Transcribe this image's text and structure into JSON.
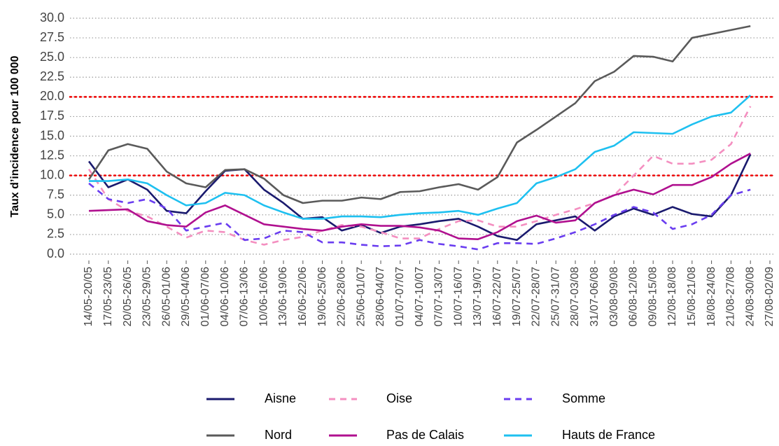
{
  "chart_data": {
    "type": "line",
    "y_label": "Taux d’incidence pour 100 000",
    "categories": [
      "14/05-20/05",
      "17/05-23/05",
      "20/05-26/05",
      "23/05-29/05",
      "26/05-01/06",
      "29/05-04/06",
      "01/06-07/06",
      "04/06-10/06",
      "07/06-13/06",
      "10/06-16/06",
      "13/06-19/06",
      "16/06-22/06",
      "19/06-25/06",
      "22/06-28/06",
      "25/06-01/07",
      "28/06-04/07",
      "01/07-07/07",
      "04/07-10/07",
      "07/07-13/07",
      "10/07-16/07",
      "13/07-19/07",
      "16/07-22/07",
      "19/07-25/07",
      "22/07-28/07",
      "25/07-31/07",
      "28/07-03/08",
      "31/07-06/08",
      "03/08-09/08",
      "06/08-12/08",
      "09/08-15/08",
      "12/08-18/08",
      "15/08-21/08",
      "18/08-24/08",
      "21/08-27/08",
      "24/08-30/08",
      "27/08-02/09"
    ],
    "series": [
      {
        "name": "Aisne",
        "color": "#1a1a6e",
        "dashed": false,
        "values": [
          11.8,
          8.5,
          9.5,
          8.2,
          5.5,
          5.2,
          8,
          10.6,
          10.8,
          8.2,
          6.5,
          4.5,
          4.7,
          3,
          3.7,
          2.7,
          3.5,
          3.8,
          4.2,
          4.5,
          3.5,
          2.3,
          1.8,
          3.8,
          4.3,
          4.8,
          3,
          4.8,
          5.8,
          5,
          6,
          5.1,
          4.8,
          7.5,
          12.7,
          null
        ]
      },
      {
        "name": "Oise",
        "color": "#f48fc0",
        "dashed": true,
        "values": [
          10.8,
          7,
          5.5,
          4.8,
          3.5,
          2.1,
          3,
          2.8,
          1.8,
          1.2,
          1.8,
          2.2,
          3,
          3.7,
          3.5,
          2.8,
          2,
          2,
          3.2,
          4.2,
          4.3,
          3.5,
          3.5,
          4.2,
          5,
          5.7,
          6.5,
          7.5,
          10,
          12.5,
          11.5,
          11.5,
          12,
          14,
          18.8,
          null
        ]
      },
      {
        "name": "Somme",
        "color": "#6a3df0",
        "dashed": true,
        "values": [
          9,
          7,
          6.5,
          7,
          5.8,
          3,
          3.5,
          4,
          1.8,
          2,
          3,
          2.8,
          1.5,
          1.5,
          1.2,
          1,
          1.1,
          1.8,
          1.3,
          1,
          0.6,
          1.4,
          1.4,
          1.3,
          2,
          2.8,
          3.8,
          5,
          6,
          5.3,
          3.2,
          3.8,
          5,
          7.5,
          8.2,
          null
        ]
      },
      {
        "name": "Nord",
        "color": "#5a5a5a",
        "dashed": false,
        "values": [
          9.5,
          13.2,
          14,
          13.4,
          10.5,
          9,
          8.5,
          10.7,
          10.8,
          9.6,
          7.5,
          6.5,
          6.8,
          6.8,
          7.2,
          7,
          7.9,
          8,
          8.5,
          8.9,
          8.2,
          9.8,
          14.2,
          15.8,
          17.5,
          19.2,
          22,
          23.2,
          25.2,
          25.1,
          24.5,
          27.5,
          28,
          28.5,
          29,
          null
        ]
      },
      {
        "name": "Pas de Calais",
        "color": "#b0108f",
        "dashed": false,
        "values": [
          5.5,
          5.6,
          5.7,
          4.2,
          3.7,
          3.5,
          5.3,
          6.2,
          5,
          3.8,
          3.5,
          3.2,
          3,
          3.5,
          3.8,
          3.6,
          3.6,
          3.4,
          3,
          2,
          1.9,
          2.8,
          4.2,
          4.9,
          4,
          4.3,
          6.5,
          7.5,
          8.2,
          7.6,
          8.8,
          8.8,
          9.8,
          11.5,
          12.8,
          null
        ]
      },
      {
        "name": "Hauts de France",
        "color": "#1ec0f0",
        "dashed": false,
        "values": [
          9.3,
          9.3,
          9.5,
          9,
          7.5,
          6.2,
          6.5,
          7.8,
          7.5,
          6.2,
          5.3,
          4.5,
          4.5,
          4.8,
          4.8,
          4.7,
          5,
          5.2,
          5.3,
          5.5,
          5,
          5.8,
          6.5,
          9,
          9.8,
          10.8,
          13,
          13.8,
          15.5,
          15.4,
          15.3,
          16.5,
          17.5,
          18,
          20.2,
          null
        ]
      }
    ],
    "ylim": [
      -0.8,
      30.6
    ],
    "yticks": [
      {
        "value": 0,
        "label": "0.0"
      },
      2.5,
      {
        "value": 5,
        "label": "5.0"
      },
      7.5,
      {
        "value": 10,
        "label": "10.0"
      },
      12.5,
      {
        "value": 15,
        "label": "15.0"
      },
      17.5,
      {
        "value": 20,
        "label": "20.0"
      },
      22.5,
      {
        "value": 25,
        "label": "25.0"
      },
      27.5,
      {
        "value": 30,
        "label": "30.0"
      }
    ],
    "reference_lines": [
      10,
      20
    ],
    "reference_color": "#ee0000",
    "grid": true
  }
}
